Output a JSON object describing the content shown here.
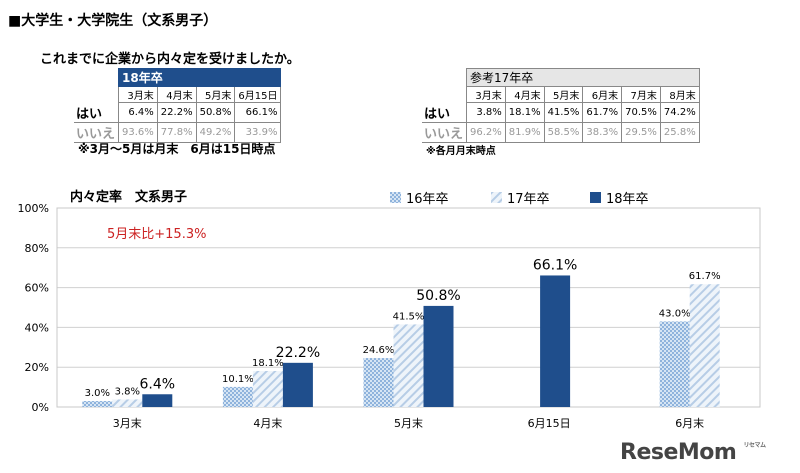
{
  "header": {
    "title": "■大学生・大学院生（文系男子）"
  },
  "question": "これまでに企業から内々定を受けましたか。",
  "table18": {
    "title": "18年卒",
    "columns": [
      "3月末",
      "4月末",
      "5月末",
      "6月15日"
    ],
    "rows": [
      {
        "label": "はい",
        "values": [
          "6.4%",
          "22.2%",
          "50.8%",
          "66.1%"
        ]
      },
      {
        "label": "いいえ",
        "values": [
          "93.6%",
          "77.8%",
          "49.2%",
          "33.9%"
        ]
      }
    ],
    "note": "※3月～5月は月末　6月は15日時点"
  },
  "table17": {
    "title": "参考17年卒",
    "columns": [
      "3月末",
      "4月末",
      "5月末",
      "6月末",
      "7月末",
      "8月末"
    ],
    "rows": [
      {
        "label": "はい",
        "values": [
          "3.8%",
          "18.1%",
          "41.5%",
          "61.7%",
          "70.5%",
          "74.2%"
        ]
      },
      {
        "label": "いいえ",
        "values": [
          "96.2%",
          "81.9%",
          "58.5%",
          "38.3%",
          "29.5%",
          "25.8%"
        ]
      }
    ],
    "note": "※各月月末時点"
  },
  "legend": {
    "s16": "16年卒",
    "s17": "17年卒",
    "s18": "18年卒"
  },
  "annotation": "5月末比+15.3%",
  "logo": {
    "text": "ReseMom",
    "small": "リセマム"
  },
  "colors": {
    "s16": "#9dbfe0",
    "s17": "#c8d9ec",
    "s18": "#1f4e8c",
    "annotation": "#cc2222"
  },
  "chart_data": {
    "type": "bar",
    "title": "内々定率　文系男子",
    "categories": [
      "3月末",
      "4月末",
      "5月末",
      "6月15日",
      "6月末"
    ],
    "ylim": [
      0,
      100
    ],
    "yticks": [
      "0%",
      "20%",
      "40%",
      "60%",
      "80%",
      "100%"
    ],
    "grid": true,
    "legend_position": "top",
    "series": [
      {
        "name": "16年卒",
        "values": [
          3.0,
          10.1,
          24.6,
          null,
          43.0
        ],
        "labels": [
          "3.0%",
          "10.1%",
          "24.6%",
          "",
          "43.0%"
        ]
      },
      {
        "name": "17年卒",
        "values": [
          3.8,
          18.1,
          41.5,
          null,
          61.7
        ],
        "labels": [
          "3.8%",
          "18.1%",
          "41.5%",
          "",
          "61.7%"
        ]
      },
      {
        "name": "18年卒",
        "values": [
          6.4,
          22.2,
          50.8,
          66.1,
          null
        ],
        "labels": [
          "6.4%",
          "22.2%",
          "50.8%",
          "66.1%",
          ""
        ]
      }
    ]
  }
}
